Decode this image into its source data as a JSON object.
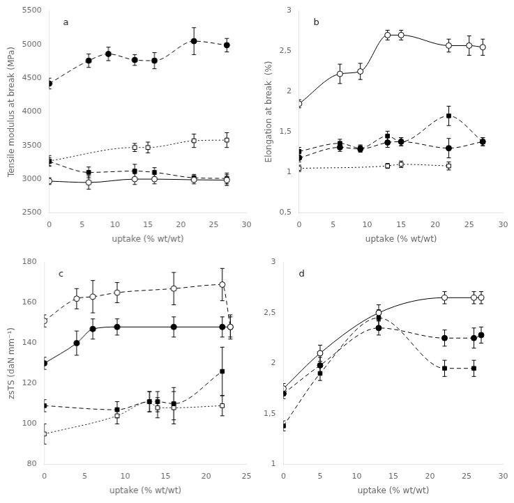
{
  "chart_data": [
    {
      "type": "line",
      "annotations": [
        "a"
      ],
      "xlabel": "uptake (% wt/wt)",
      "ylabel": "Tensile modulus at break (MPa)",
      "xlim": [
        0,
        30
      ],
      "ylim": [
        2500,
        5500
      ],
      "xticks": [
        0,
        5,
        10,
        15,
        20,
        25,
        30
      ],
      "yticks": [
        2500,
        3000,
        3500,
        4000,
        4500,
        5000,
        5500
      ],
      "grid": false,
      "series": [
        {
          "x": [
            0,
            6,
            13,
            16,
            22,
            27
          ],
          "values": [
            2970,
            2950,
            3000,
            3000,
            2990,
            2985
          ],
          "yerr": [
            50,
            100,
            80,
            70,
            60,
            80
          ],
          "marker": "circle-open",
          "line_style": "solid",
          "color": "black"
        },
        {
          "x": [
            0,
            6,
            9,
            13,
            16,
            22,
            27
          ],
          "values": [
            4420,
            4760,
            4860,
            4770,
            4760,
            5050,
            4990
          ],
          "yerr": [
            80,
            100,
            100,
            80,
            120,
            200,
            100
          ],
          "marker": "circle",
          "line_style": "dashed",
          "color": "black"
        },
        {
          "x": [
            0,
            6,
            13,
            16,
            22,
            27
          ],
          "values": [
            3260,
            3100,
            3120,
            3100,
            3020,
            3010
          ],
          "yerr": [
            60,
            80,
            100,
            70,
            50,
            80
          ],
          "marker": "square",
          "line_style": "dashed",
          "color": "black"
        },
        {
          "x": [
            0,
            13,
            15,
            22,
            27
          ],
          "values": [
            3270,
            3470,
            3470,
            3570,
            3580
          ],
          "yerr": [
            80,
            60,
            80,
            100,
            110
          ],
          "marker": "square-open",
          "line_style": "dotted",
          "color": "black"
        }
      ]
    },
    {
      "type": "line",
      "annotations": [
        "b"
      ],
      "xlabel": "uptake (% wt/wt)",
      "ylabel": "Elongation at break  (%)",
      "xlim": [
        0,
        30
      ],
      "ylim": [
        0.5,
        3.0
      ],
      "xticks": [
        0,
        5,
        10,
        15,
        20,
        25,
        30
      ],
      "yticks": [
        {
          "value": 0.5,
          "label": "0,5"
        },
        1,
        {
          "value": 1.5,
          "label": "1,5"
        },
        2,
        {
          "value": 2.5,
          "label": "2,5"
        },
        3
      ],
      "grid": false,
      "series": [
        {
          "x": [
            0,
            6,
            9,
            13,
            15,
            22,
            25,
            27
          ],
          "values": [
            1.85,
            2.22,
            2.25,
            2.7,
            2.7,
            2.57,
            2.57,
            2.55
          ],
          "yerr": [
            0.05,
            0.12,
            0.1,
            0.06,
            0.06,
            0.08,
            0.12,
            0.1
          ],
          "marker": "circle-open",
          "line_style": "solid",
          "color": "black"
        },
        {
          "x": [
            0,
            6,
            9,
            13,
            15,
            22,
            27
          ],
          "values": [
            1.18,
            1.31,
            1.29,
            1.37,
            1.38,
            1.3,
            1.38
          ],
          "yerr": [
            0.05,
            0.05,
            0.04,
            0.06,
            0.05,
            0.12,
            0.05
          ],
          "marker": "circle",
          "line_style": "dashed",
          "color": "black"
        },
        {
          "x": [
            0,
            6,
            9,
            13,
            15,
            22,
            27
          ],
          "values": [
            1.26,
            1.36,
            1.3,
            1.45,
            1.38,
            1.7,
            1.38
          ],
          "yerr": [
            0.05,
            0.05,
            0.04,
            0.06,
            0.05,
            0.12,
            0.05
          ],
          "marker": "square",
          "line_style": "dashed",
          "color": "black"
        },
        {
          "x": [
            0,
            13,
            15,
            22
          ],
          "values": [
            1.05,
            1.08,
            1.1,
            1.08
          ],
          "yerr": [
            0.04,
            0.03,
            0.04,
            0.05
          ],
          "marker": "square-open",
          "line_style": "dotted",
          "color": "black"
        }
      ]
    },
    {
      "type": "line",
      "annotations": [
        "c"
      ],
      "xlabel": "uptake (% wt/wt)",
      "ylabel": "zsTS (daN mm⁻¹)",
      "xlim": [
        0,
        25
      ],
      "ylim": [
        80,
        180
      ],
      "xticks": [
        0,
        5,
        10,
        15,
        20,
        25
      ],
      "yticks": [
        80,
        100,
        120,
        140,
        160,
        180
      ],
      "grid": false,
      "series": [
        {
          "x": [
            0,
            4,
            6,
            9,
            16,
            22,
            23
          ],
          "values": [
            151,
            162,
            163,
            165,
            167,
            169,
            148
          ],
          "yerr": [
            3,
            5,
            8,
            5,
            8,
            8,
            5
          ],
          "marker": "circle-open",
          "line_style": "dashed",
          "color": "black"
        },
        {
          "x": [
            0,
            4,
            6,
            9,
            16,
            22,
            23
          ],
          "values": [
            130,
            140,
            147,
            148,
            148,
            148,
            148
          ],
          "yerr": [
            3,
            6,
            5,
            4,
            5,
            5,
            6
          ],
          "marker": "circle",
          "line_style": "solid",
          "color": "black"
        },
        {
          "x": [
            0,
            9,
            13,
            14,
            16,
            22
          ],
          "values": [
            109,
            107,
            111,
            111,
            110,
            126
          ],
          "yerr": [
            3,
            4,
            5,
            5,
            8,
            12
          ],
          "marker": "square",
          "line_style": "dashed",
          "color": "black"
        },
        {
          "x": [
            0,
            9,
            13,
            14,
            16,
            22
          ],
          "values": [
            95,
            104,
            111,
            108,
            108,
            109
          ],
          "yerr": [
            5,
            4,
            5,
            5,
            8,
            5
          ],
          "marker": "square-open",
          "line_style": "dotted",
          "color": "black"
        }
      ]
    },
    {
      "type": "line",
      "annotations": [
        "d"
      ],
      "xlabel": "uptake (% wt/wt)",
      "xlim": [
        0,
        30
      ],
      "ylim": [
        1.0,
        3.0
      ],
      "xticks": [
        0,
        5,
        10,
        15,
        20,
        25,
        30
      ],
      "yticks": [
        1,
        {
          "value": 1.5,
          "label": "1,5"
        },
        2,
        {
          "value": 2.5,
          "label": "2,5"
        },
        3
      ],
      "grid": false,
      "series": [
        {
          "x": [
            0,
            5,
            13,
            22,
            26,
            27
          ],
          "values": [
            1.75,
            2.1,
            2.5,
            2.65,
            2.65,
            2.65
          ],
          "yerr": [
            0.05,
            0.08,
            0.08,
            0.06,
            0.06,
            0.06
          ],
          "marker": "circle-open",
          "line_style": "solid",
          "color": "black"
        },
        {
          "x": [
            0,
            5,
            13,
            22,
            26,
            27
          ],
          "values": [
            1.7,
            1.98,
            2.35,
            2.25,
            2.25,
            2.28
          ],
          "yerr": [
            0.05,
            0.08,
            0.07,
            0.08,
            0.1,
            0.08
          ],
          "marker": "circle",
          "line_style": "dashed",
          "color": "black"
        },
        {
          "x": [
            0,
            5,
            13,
            22,
            26
          ],
          "values": [
            1.38,
            1.9,
            2.45,
            1.95,
            1.95
          ],
          "yerr": [
            0.05,
            0.07,
            0.08,
            0.08,
            0.08
          ],
          "marker": "square",
          "line_style": "dashed",
          "color": "black"
        }
      ]
    }
  ]
}
